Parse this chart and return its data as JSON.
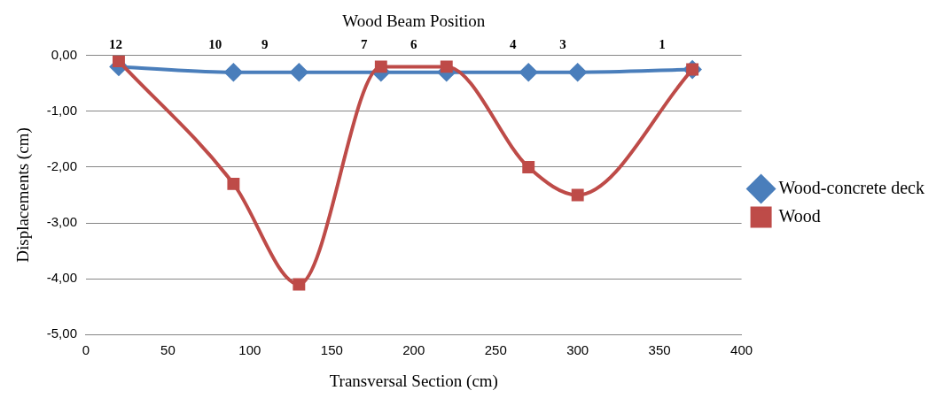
{
  "chart_data": {
    "type": "line",
    "xlabel": "Transversal Section (cm)",
    "ylabel": "Displacements (cm)",
    "x2label": "Wood Beam Position",
    "xlim": [
      0,
      400
    ],
    "xticks": [
      0,
      50,
      100,
      150,
      200,
      250,
      300,
      350,
      400
    ],
    "x2lim": [
      12.6,
      -0.6
    ],
    "x2ticks": [
      12,
      10,
      9,
      7,
      6,
      4,
      3,
      1
    ],
    "ylim": [
      -5,
      0
    ],
    "yticks": [
      {
        "value": -5,
        "label": "-5,00"
      },
      {
        "value": -4,
        "label": "-4,00"
      },
      {
        "value": -3,
        "label": "-3,00"
      },
      {
        "value": -2,
        "label": "-2,00"
      },
      {
        "value": -1,
        "label": "-1,00"
      },
      {
        "value": 0,
        "label": "0,00"
      }
    ],
    "grid": "y",
    "legend": "right",
    "series": [
      {
        "name": "Wood-concrete deck",
        "color": "#4a7ebb",
        "marker": "diamond",
        "x": [
          20,
          90,
          130,
          180,
          220,
          270,
          300,
          370
        ],
        "values": [
          -0.2,
          -0.3,
          -0.3,
          -0.3,
          -0.3,
          -0.3,
          -0.3,
          -0.25
        ]
      },
      {
        "name": "Wood",
        "color": "#be4b48",
        "marker": "square",
        "x": [
          20,
          90,
          130,
          180,
          220,
          270,
          300,
          370
        ],
        "values": [
          -0.1,
          -2.3,
          -4.1,
          -0.2,
          -0.2,
          -2.0,
          -2.5,
          -0.25
        ]
      }
    ]
  }
}
